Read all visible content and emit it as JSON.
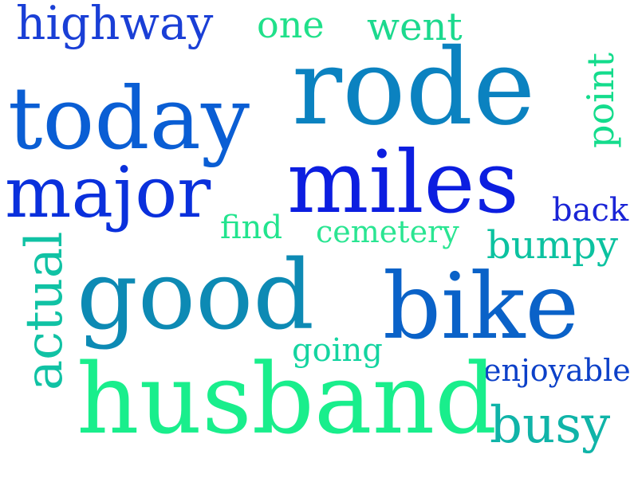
{
  "words": [
    {
      "id": "highway",
      "text": "highway",
      "color": "#1a3fd6"
    },
    {
      "id": "one",
      "text": "one",
      "color": "#20e08a"
    },
    {
      "id": "went",
      "text": "went",
      "color": "#1cd98e"
    },
    {
      "id": "rode",
      "text": "rode",
      "color": "#0b82c0"
    },
    {
      "id": "point",
      "text": "point",
      "color": "#14dc8c"
    },
    {
      "id": "today",
      "text": "today",
      "color": "#0a5ed4"
    },
    {
      "id": "major",
      "text": "major",
      "color": "#0a30dc"
    },
    {
      "id": "miles",
      "text": "miles",
      "color": "#0c1ee0"
    },
    {
      "id": "back",
      "text": "back",
      "color": "#1a24d6"
    },
    {
      "id": "find",
      "text": "find",
      "color": "#22e48e"
    },
    {
      "id": "cemetery",
      "text": "cemetery",
      "color": "#2ae592"
    },
    {
      "id": "bumpy",
      "text": "bumpy",
      "color": "#0cc2a0"
    },
    {
      "id": "actual",
      "text": "actual",
      "color": "#10c2a4"
    },
    {
      "id": "good",
      "text": "good",
      "color": "#0d8ab4"
    },
    {
      "id": "bike",
      "text": "bike",
      "color": "#0a62c8"
    },
    {
      "id": "going",
      "text": "going",
      "color": "#14d4a0"
    },
    {
      "id": "enjoyable",
      "text": "enjoyable",
      "color": "#0c40c8"
    },
    {
      "id": "husband",
      "text": "husband",
      "color": "#19ee8c"
    },
    {
      "id": "busy",
      "text": "busy",
      "color": "#10b4a8"
    }
  ]
}
